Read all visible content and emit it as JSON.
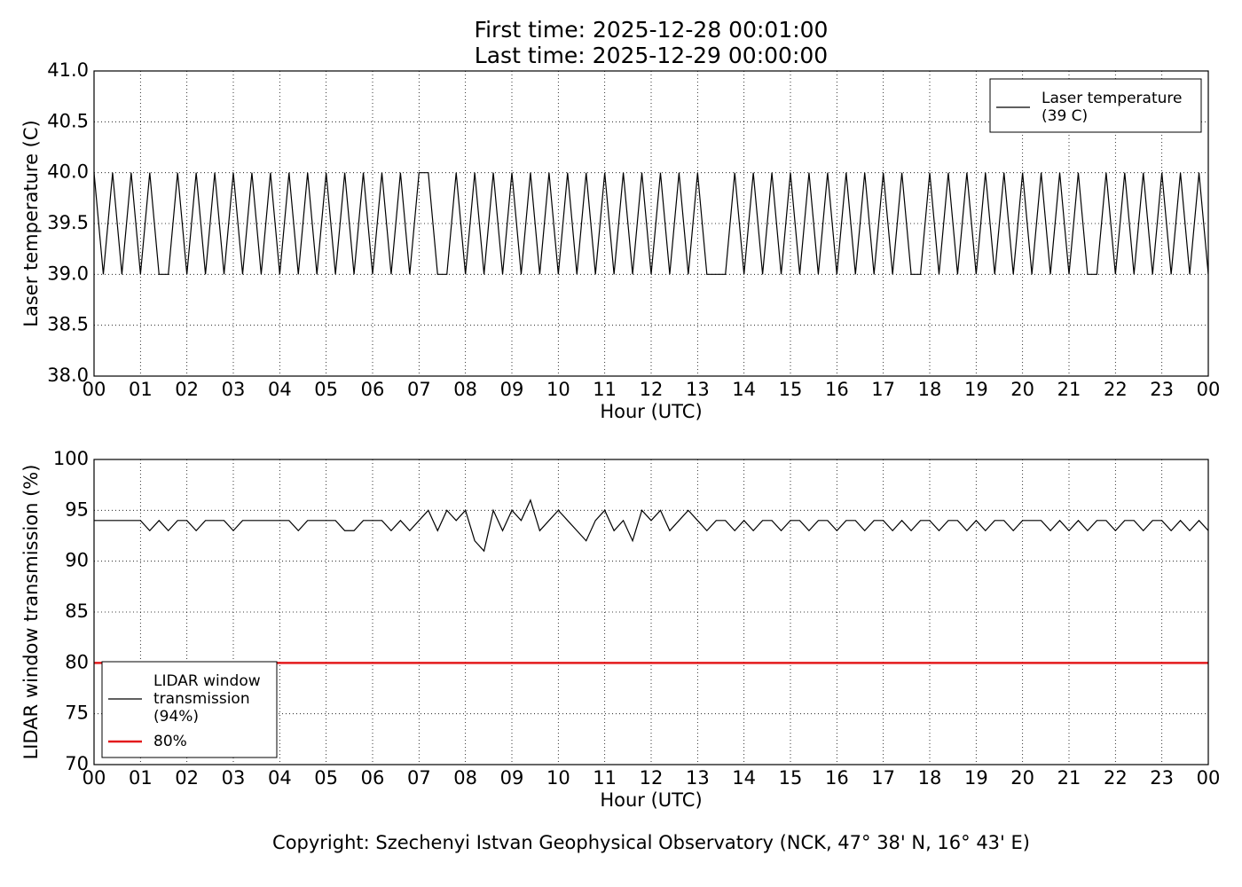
{
  "title": [
    "First time: 2025-12-28 00:01:00",
    "Last time: 2025-12-29 00:00:00"
  ],
  "footer": "Copyright: Szechenyi Istvan Geophysical Observatory (NCK, 47° 38' N, 16° 43' E)",
  "chart_data": [
    {
      "type": "line",
      "xlabel": "Hour (UTC)",
      "ylabel": "Laser temperature (C)",
      "grid": true,
      "legend": "upper right",
      "xlim": [
        0,
        24
      ],
      "ylim": [
        38,
        41
      ],
      "xticks": [
        {
          "value": 0,
          "label": "00"
        },
        {
          "value": 1,
          "label": "01"
        },
        {
          "value": 2,
          "label": "02"
        },
        {
          "value": 3,
          "label": "03"
        },
        {
          "value": 4,
          "label": "04"
        },
        {
          "value": 5,
          "label": "05"
        },
        {
          "value": 6,
          "label": "06"
        },
        {
          "value": 7,
          "label": "07"
        },
        {
          "value": 8,
          "label": "08"
        },
        {
          "value": 9,
          "label": "09"
        },
        {
          "value": 10,
          "label": "10"
        },
        {
          "value": 11,
          "label": "11"
        },
        {
          "value": 12,
          "label": "12"
        },
        {
          "value": 13,
          "label": "13"
        },
        {
          "value": 14,
          "label": "14"
        },
        {
          "value": 15,
          "label": "15"
        },
        {
          "value": 16,
          "label": "16"
        },
        {
          "value": 17,
          "label": "17"
        },
        {
          "value": 18,
          "label": "18"
        },
        {
          "value": 19,
          "label": "19"
        },
        {
          "value": 20,
          "label": "20"
        },
        {
          "value": 21,
          "label": "21"
        },
        {
          "value": 22,
          "label": "22"
        },
        {
          "value": 23,
          "label": "23"
        },
        {
          "value": 24,
          "label": "00"
        }
      ],
      "yticks": [
        {
          "value": 38,
          "label": "38.0"
        },
        {
          "value": 38.5,
          "label": "38.5"
        },
        {
          "value": 39,
          "label": "39.0"
        },
        {
          "value": 39.5,
          "label": "39.5"
        },
        {
          "value": 40,
          "label": "40.0"
        },
        {
          "value": 40.5,
          "label": "40.5"
        },
        {
          "value": 41,
          "label": "41.0"
        }
      ],
      "x": [
        0,
        0.2,
        0.4,
        0.6,
        0.8,
        1,
        1.2,
        1.4,
        1.6,
        1.8,
        2,
        2.2,
        2.4,
        2.6,
        2.8,
        3,
        3.2,
        3.4,
        3.6,
        3.8,
        4,
        4.2,
        4.4,
        4.6,
        4.8,
        5,
        5.2,
        5.4,
        5.6,
        5.8,
        6,
        6.2,
        6.4,
        6.6,
        6.8,
        7,
        7.2,
        7.4,
        7.6,
        7.8,
        8,
        8.2,
        8.4,
        8.6,
        8.8,
        9,
        9.2,
        9.4,
        9.6,
        9.8,
        10,
        10.2,
        10.4,
        10.6,
        10.8,
        11,
        11.2,
        11.4,
        11.6,
        11.8,
        12,
        12.2,
        12.4,
        12.6,
        12.8,
        13,
        13.2,
        13.4,
        13.6,
        13.8,
        14,
        14.2,
        14.4,
        14.6,
        14.8,
        15,
        15.2,
        15.4,
        15.6,
        15.8,
        16,
        16.2,
        16.4,
        16.6,
        16.8,
        17,
        17.2,
        17.4,
        17.6,
        17.8,
        18,
        18.2,
        18.4,
        18.6,
        18.8,
        19,
        19.2,
        19.4,
        19.6,
        19.8,
        20,
        20.2,
        20.4,
        20.6,
        20.8,
        21,
        21.2,
        21.4,
        21.6,
        21.8,
        22,
        22.2,
        22.4,
        22.6,
        22.8,
        23,
        23.2,
        23.4,
        23.6,
        23.8,
        24
      ],
      "series": [
        {
          "name": "Laser temperature\n(39 C)",
          "color": "#000000",
          "values": [
            40,
            39,
            40,
            39,
            40,
            39,
            40,
            39,
            39,
            40,
            39,
            40,
            39,
            40,
            39,
            40,
            39,
            40,
            39,
            40,
            39,
            40,
            39,
            40,
            39,
            40,
            39,
            40,
            39,
            40,
            39,
            40,
            39,
            40,
            39,
            40,
            40,
            39,
            39,
            40,
            39,
            40,
            39,
            40,
            39,
            40,
            39,
            40,
            39,
            40,
            39,
            40,
            39,
            40,
            39,
            40,
            39,
            40,
            39,
            40,
            39,
            40,
            39,
            40,
            39,
            40,
            39,
            39,
            39,
            40,
            39,
            40,
            39,
            40,
            39,
            40,
            39,
            40,
            39,
            40,
            39,
            40,
            39,
            40,
            39,
            40,
            39,
            40,
            39,
            39,
            40,
            39,
            40,
            39,
            40,
            39,
            40,
            39,
            40,
            39,
            40,
            39,
            40,
            39,
            40,
            39,
            40,
            39,
            39,
            40,
            39,
            40,
            39,
            40,
            39,
            40,
            39,
            40,
            39,
            40,
            39
          ]
        }
      ]
    },
    {
      "type": "line",
      "xlabel": "Hour (UTC)",
      "ylabel": "LIDAR window transmission (%)",
      "grid": true,
      "legend": "lower left",
      "xlim": [
        0,
        24
      ],
      "ylim": [
        70,
        100
      ],
      "xticks": [
        {
          "value": 0,
          "label": "00"
        },
        {
          "value": 1,
          "label": "01"
        },
        {
          "value": 2,
          "label": "02"
        },
        {
          "value": 3,
          "label": "03"
        },
        {
          "value": 4,
          "label": "04"
        },
        {
          "value": 5,
          "label": "05"
        },
        {
          "value": 6,
          "label": "06"
        },
        {
          "value": 7,
          "label": "07"
        },
        {
          "value": 8,
          "label": "08"
        },
        {
          "value": 9,
          "label": "09"
        },
        {
          "value": 10,
          "label": "10"
        },
        {
          "value": 11,
          "label": "11"
        },
        {
          "value": 12,
          "label": "12"
        },
        {
          "value": 13,
          "label": "13"
        },
        {
          "value": 14,
          "label": "14"
        },
        {
          "value": 15,
          "label": "15"
        },
        {
          "value": 16,
          "label": "16"
        },
        {
          "value": 17,
          "label": "17"
        },
        {
          "value": 18,
          "label": "18"
        },
        {
          "value": 19,
          "label": "19"
        },
        {
          "value": 20,
          "label": "20"
        },
        {
          "value": 21,
          "label": "21"
        },
        {
          "value": 22,
          "label": "22"
        },
        {
          "value": 23,
          "label": "23"
        },
        {
          "value": 24,
          "label": "00"
        }
      ],
      "yticks": [
        70,
        75,
        80,
        85,
        90,
        95,
        100
      ],
      "x": [
        0,
        0.2,
        0.4,
        0.6,
        0.8,
        1,
        1.2,
        1.4,
        1.6,
        1.8,
        2,
        2.2,
        2.4,
        2.6,
        2.8,
        3,
        3.2,
        3.4,
        3.6,
        3.8,
        4,
        4.2,
        4.4,
        4.6,
        4.8,
        5,
        5.2,
        5.4,
        5.6,
        5.8,
        6,
        6.2,
        6.4,
        6.6,
        6.8,
        7,
        7.2,
        7.4,
        7.6,
        7.8,
        8,
        8.2,
        8.4,
        8.6,
        8.8,
        9,
        9.2,
        9.4,
        9.6,
        9.8,
        10,
        10.2,
        10.4,
        10.6,
        10.8,
        11,
        11.2,
        11.4,
        11.6,
        11.8,
        12,
        12.2,
        12.4,
        12.6,
        12.8,
        13,
        13.2,
        13.4,
        13.6,
        13.8,
        14,
        14.2,
        14.4,
        14.6,
        14.8,
        15,
        15.2,
        15.4,
        15.6,
        15.8,
        16,
        16.2,
        16.4,
        16.6,
        16.8,
        17,
        17.2,
        17.4,
        17.6,
        17.8,
        18,
        18.2,
        18.4,
        18.6,
        18.8,
        19,
        19.2,
        19.4,
        19.6,
        19.8,
        20,
        20.2,
        20.4,
        20.6,
        20.8,
        21,
        21.2,
        21.4,
        21.6,
        21.8,
        22,
        22.2,
        22.4,
        22.6,
        22.8,
        23,
        23.2,
        23.4,
        23.6,
        23.8,
        24
      ],
      "series": [
        {
          "name": "LIDAR window\ntransmission\n(94%)",
          "color": "#000000",
          "values": [
            94,
            94,
            94,
            94,
            94,
            94,
            93,
            94,
            93,
            94,
            94,
            93,
            94,
            94,
            94,
            93,
            94,
            94,
            94,
            94,
            94,
            94,
            93,
            94,
            94,
            94,
            94,
            93,
            93,
            94,
            94,
            94,
            93,
            94,
            93,
            94,
            95,
            93,
            95,
            94,
            95,
            92,
            91,
            95,
            93,
            95,
            94,
            96,
            93,
            94,
            95,
            94,
            93,
            92,
            94,
            95,
            93,
            94,
            92,
            95,
            94,
            95,
            93,
            94,
            95,
            94,
            93,
            94,
            94,
            93,
            94,
            93,
            94,
            94,
            93,
            94,
            94,
            93,
            94,
            94,
            93,
            94,
            94,
            93,
            94,
            94,
            93,
            94,
            93,
            94,
            94,
            93,
            94,
            94,
            93,
            94,
            93,
            94,
            94,
            93,
            94,
            94,
            94,
            93,
            94,
            93,
            94,
            93,
            94,
            94,
            93,
            94,
            94,
            93,
            94,
            94,
            93,
            94,
            93,
            94,
            93
          ]
        },
        {
          "name": "80%",
          "color": "#e31a1c",
          "x": [
            0,
            24
          ],
          "values": [
            80,
            80
          ]
        }
      ]
    }
  ]
}
